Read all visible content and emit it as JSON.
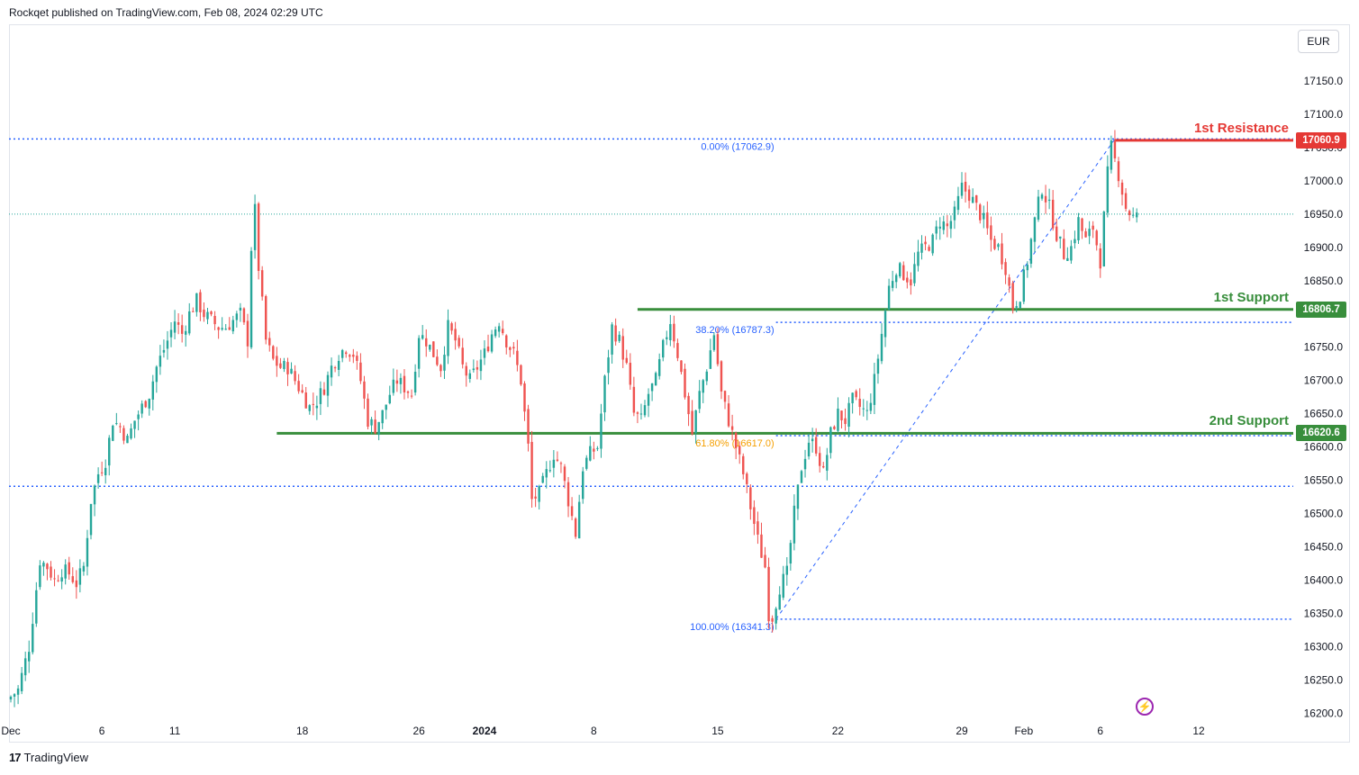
{
  "header": {
    "publisher_text": "Rockqet published on TradingView.com, Feb 08, 2024 02:29 UTC"
  },
  "footer": {
    "brand": "TradingView",
    "logo": "17"
  },
  "currency": "EUR",
  "levels": {
    "resistance1": {
      "label": "1st Resistance",
      "price": "17060.9",
      "color": "#e53935"
    },
    "support1": {
      "label": "1st Support",
      "price": "16806.7",
      "color": "#388e3c"
    },
    "support2": {
      "label": "2nd Support",
      "price": "16620.6",
      "color": "#388e3c"
    }
  },
  "fib_labels": {
    "f0": "0.00% (17062.9)",
    "f382": "38.20% (16787.3)",
    "f618": "61.80% (16617.0)",
    "f100": "100.00% (16341.3)"
  },
  "colors": {
    "up": "#26a69a",
    "down": "#ef5350",
    "fib_line": "#2962ff",
    "fib618": "#f59f00"
  },
  "chart_data": {
    "type": "candlestick",
    "title": "",
    "ylim": [
      16180,
      17220
    ],
    "y_ticks": [
      17150,
      17100,
      17050,
      17000,
      16950,
      16900,
      16850,
      16800,
      16750,
      16700,
      16650,
      16600,
      16550,
      16500,
      16450,
      16400,
      16350,
      16300,
      16250,
      16200
    ],
    "x_tick_labels": [
      {
        "label": "Dec",
        "bar": 0
      },
      {
        "label": "6",
        "bar": 25
      },
      {
        "label": "11",
        "bar": 45
      },
      {
        "label": "18",
        "bar": 80
      },
      {
        "label": "26",
        "bar": 112
      },
      {
        "label": "2024",
        "bar": 130
      },
      {
        "label": "8",
        "bar": 160
      },
      {
        "label": "15",
        "bar": 194
      },
      {
        "label": "22",
        "bar": 227
      },
      {
        "label": "29",
        "bar": 261
      },
      {
        "label": "Feb",
        "bar": 278
      },
      {
        "label": "6",
        "bar": 299
      },
      {
        "label": "12",
        "bar": 326
      }
    ],
    "horizontal_levels": [
      17060.9,
      16806.7,
      16620.6
    ],
    "dotted_levels": [
      17062.9,
      16950,
      16787.3,
      16617.0,
      16541,
      16341.3
    ],
    "fib_from": {
      "bar": 210,
      "price": 16341.3
    },
    "fib_to": {
      "bar": 303,
      "price": 17062.9
    },
    "candle_anchors": [
      [
        0,
        16220
      ],
      [
        3,
        16235
      ],
      [
        6,
        16300
      ],
      [
        9,
        16430
      ],
      [
        11,
        16420
      ],
      [
        13,
        16400
      ],
      [
        15,
        16415
      ],
      [
        17,
        16410
      ],
      [
        19,
        16395
      ],
      [
        21,
        16420
      ],
      [
        23,
        16520
      ],
      [
        25,
        16560
      ],
      [
        27,
        16580
      ],
      [
        29,
        16640
      ],
      [
        31,
        16630
      ],
      [
        33,
        16610
      ],
      [
        35,
        16640
      ],
      [
        37,
        16660
      ],
      [
        39,
        16680
      ],
      [
        41,
        16720
      ],
      [
        44,
        16760
      ],
      [
        46,
        16790
      ],
      [
        48,
        16770
      ],
      [
        50,
        16800
      ],
      [
        52,
        16820
      ],
      [
        54,
        16800
      ],
      [
        56,
        16790
      ],
      [
        58,
        16780
      ],
      [
        60,
        16780
      ],
      [
        62,
        16790
      ],
      [
        64,
        16800
      ],
      [
        66,
        16760
      ],
      [
        67,
        16900
      ],
      [
        68,
        16955
      ],
      [
        69,
        16870
      ],
      [
        71,
        16760
      ],
      [
        73,
        16730
      ],
      [
        75,
        16720
      ],
      [
        77,
        16720
      ],
      [
        79,
        16700
      ],
      [
        81,
        16680
      ],
      [
        83,
        16660
      ],
      [
        85,
        16670
      ],
      [
        87,
        16690
      ],
      [
        89,
        16720
      ],
      [
        91,
        16740
      ],
      [
        93,
        16750
      ],
      [
        95,
        16740
      ],
      [
        97,
        16700
      ],
      [
        99,
        16640
      ],
      [
        101,
        16630
      ],
      [
        103,
        16650
      ],
      [
        105,
        16680
      ],
      [
        107,
        16700
      ],
      [
        109,
        16690
      ],
      [
        111,
        16680
      ],
      [
        113,
        16770
      ],
      [
        115,
        16760
      ],
      [
        117,
        16740
      ],
      [
        119,
        16720
      ],
      [
        121,
        16780
      ],
      [
        123,
        16760
      ],
      [
        125,
        16720
      ],
      [
        127,
        16700
      ],
      [
        129,
        16720
      ],
      [
        131,
        16740
      ],
      [
        133,
        16770
      ],
      [
        135,
        16790
      ],
      [
        137,
        16760
      ],
      [
        139,
        16740
      ],
      [
        141,
        16700
      ],
      [
        143,
        16600
      ],
      [
        144,
        16520
      ],
      [
        146,
        16530
      ],
      [
        148,
        16560
      ],
      [
        150,
        16590
      ],
      [
        152,
        16570
      ],
      [
        154,
        16520
      ],
      [
        156,
        16470
      ],
      [
        158,
        16570
      ],
      [
        160,
        16590
      ],
      [
        162,
        16600
      ],
      [
        164,
        16700
      ],
      [
        166,
        16780
      ],
      [
        168,
        16760
      ],
      [
        170,
        16720
      ],
      [
        172,
        16650
      ],
      [
        174,
        16640
      ],
      [
        176,
        16680
      ],
      [
        178,
        16700
      ],
      [
        180,
        16750
      ],
      [
        182,
        16790
      ],
      [
        184,
        16740
      ],
      [
        186,
        16680
      ],
      [
        188,
        16620
      ],
      [
        190,
        16680
      ],
      [
        192,
        16720
      ],
      [
        194,
        16770
      ],
      [
        196,
        16680
      ],
      [
        198,
        16640
      ],
      [
        200,
        16600
      ],
      [
        202,
        16560
      ],
      [
        204,
        16510
      ],
      [
        206,
        16460
      ],
      [
        208,
        16420
      ],
      [
        209,
        16350
      ],
      [
        210,
        16345
      ],
      [
        212,
        16390
      ],
      [
        214,
        16410
      ],
      [
        216,
        16500
      ],
      [
        218,
        16570
      ],
      [
        220,
        16610
      ],
      [
        222,
        16600
      ],
      [
        224,
        16560
      ],
      [
        226,
        16620
      ],
      [
        228,
        16650
      ],
      [
        230,
        16640
      ],
      [
        232,
        16670
      ],
      [
        234,
        16660
      ],
      [
        236,
        16650
      ],
      [
        238,
        16700
      ],
      [
        240,
        16770
      ],
      [
        242,
        16840
      ],
      [
        244,
        16870
      ],
      [
        246,
        16860
      ],
      [
        248,
        16850
      ],
      [
        250,
        16890
      ],
      [
        252,
        16900
      ],
      [
        254,
        16910
      ],
      [
        256,
        16940
      ],
      [
        258,
        16930
      ],
      [
        260,
        16950
      ],
      [
        262,
        16990
      ],
      [
        264,
        16980
      ],
      [
        266,
        16960
      ],
      [
        268,
        16940
      ],
      [
        270,
        16910
      ],
      [
        272,
        16900
      ],
      [
        274,
        16870
      ],
      [
        276,
        16810
      ],
      [
        278,
        16830
      ],
      [
        280,
        16880
      ],
      [
        282,
        16940
      ],
      [
        284,
        16990
      ],
      [
        286,
        16960
      ],
      [
        288,
        16920
      ],
      [
        290,
        16890
      ],
      [
        292,
        16900
      ],
      [
        294,
        16940
      ],
      [
        296,
        16910
      ],
      [
        298,
        16930
      ],
      [
        300,
        16880
      ],
      [
        302,
        17010
      ],
      [
        303,
        17050
      ],
      [
        305,
        17010
      ],
      [
        307,
        16960
      ],
      [
        309,
        16945
      ]
    ]
  }
}
